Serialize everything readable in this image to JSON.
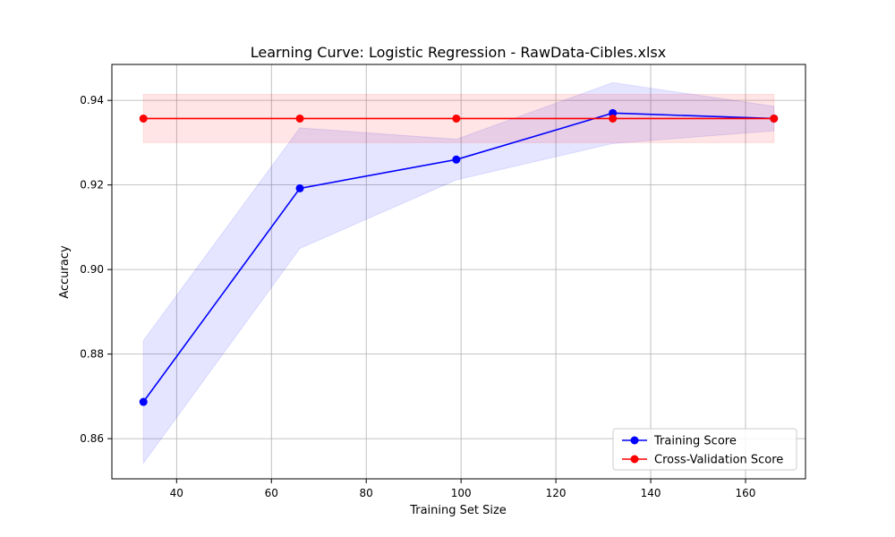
{
  "chart_data": {
    "type": "line",
    "title": "Learning Curve: Logistic Regression - RawData-Cibles.xlsx",
    "xlabel": "Training Set Size",
    "ylabel": "Accuracy",
    "xlim": [
      26.35,
      172.65
    ],
    "ylim": [
      0.8505,
      0.9485
    ],
    "xticks": [
      40,
      60,
      80,
      100,
      120,
      140,
      160
    ],
    "yticks": [
      0.86,
      0.88,
      0.9,
      0.92,
      0.94
    ],
    "ytick_labels": [
      "0.86",
      "0.88",
      "0.90",
      "0.92",
      "0.94"
    ],
    "grid": true,
    "legend_position": "lower-right",
    "x": [
      33,
      66,
      99,
      132,
      166
    ],
    "series": [
      {
        "name": "Training Score",
        "color": "#0000ff",
        "values": [
          0.8687,
          0.9192,
          0.926,
          0.937,
          0.9357
        ],
        "band_low": [
          0.8542,
          0.905,
          0.9212,
          0.9298,
          0.9328
        ],
        "band_high": [
          0.8832,
          0.9335,
          0.9308,
          0.9442,
          0.9386
        ]
      },
      {
        "name": "Cross-Validation Score",
        "color": "#ff0000",
        "values": [
          0.9357,
          0.9357,
          0.9357,
          0.9357,
          0.9357
        ],
        "band_low": [
          0.93,
          0.93,
          0.93,
          0.93,
          0.93
        ],
        "band_high": [
          0.9414,
          0.9414,
          0.9414,
          0.9414,
          0.9414
        ]
      }
    ]
  }
}
